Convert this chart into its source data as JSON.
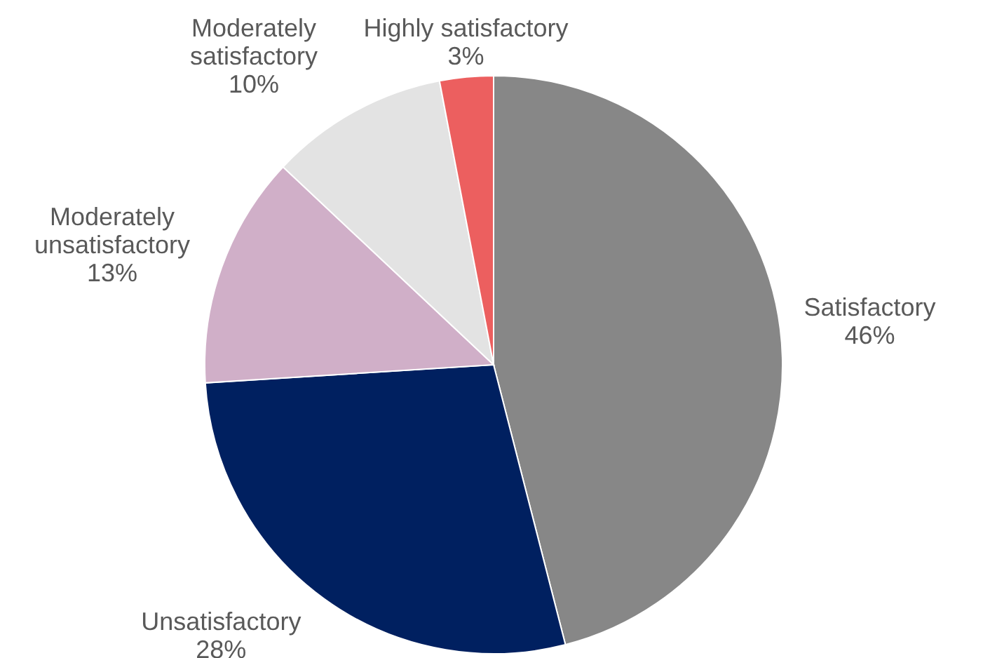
{
  "chart_data": {
    "type": "pie",
    "categories": [
      "Satisfactory",
      "Unsatisfactory",
      "Moderately unsatisfactory",
      "Moderately satisfactory",
      "Highly satisfactory"
    ],
    "values": [
      46,
      28,
      13,
      10,
      3
    ],
    "colors": [
      "#878787",
      "#002060",
      "#d0afc8",
      "#e3e3e3",
      "#ec5f5f"
    ],
    "value_labels": [
      "46%",
      "28%",
      "13%",
      "10%",
      "3%"
    ]
  }
}
